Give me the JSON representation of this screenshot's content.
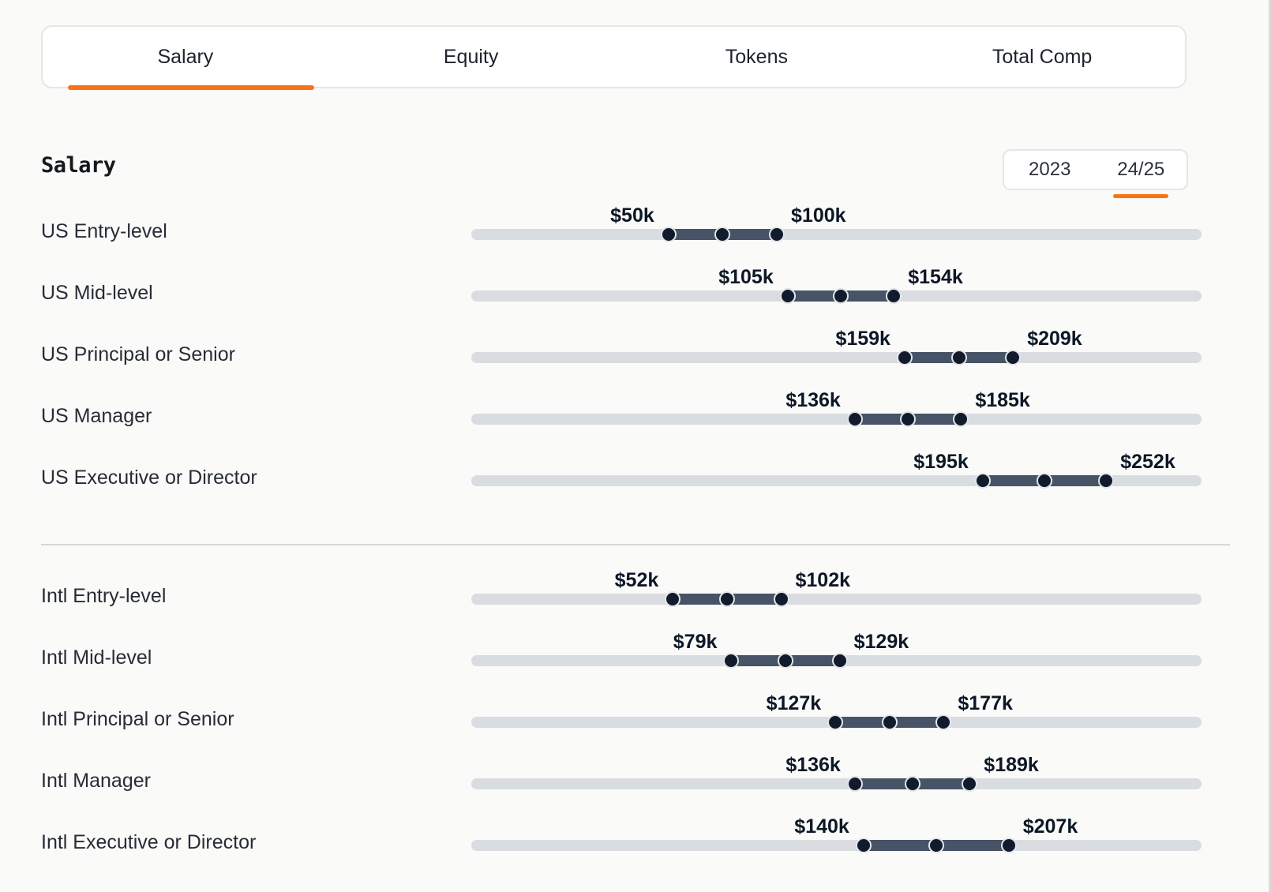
{
  "tabs": [
    {
      "label": "Salary",
      "active": true
    },
    {
      "label": "Equity",
      "active": false
    },
    {
      "label": "Tokens",
      "active": false
    },
    {
      "label": "Total Comp",
      "active": false
    }
  ],
  "section_heading": "Salary",
  "year_toggle": {
    "options": [
      {
        "label": "2023",
        "active": false
      },
      {
        "label": "24/25",
        "active": true
      }
    ]
  },
  "colors": {
    "accent_orange": "#f97316",
    "range_bar": "#475366",
    "slider_handle": "#111b2b",
    "track": "#d9dce1"
  },
  "slider_scale_k": {
    "min": -41,
    "max": 296
  },
  "chart_data": {
    "type": "table",
    "title": "Salary",
    "unit": "USD thousands",
    "sections": [
      {
        "name": "US",
        "rows": [
          {
            "label": "US Entry-level",
            "min_k": 50,
            "max_k": 100,
            "min_label": "$50k",
            "max_label": "$100k"
          },
          {
            "label": "US Mid-level",
            "min_k": 105,
            "max_k": 154,
            "min_label": "$105k",
            "max_label": "$154k"
          },
          {
            "label": "US Principal or Senior",
            "min_k": 159,
            "max_k": 209,
            "min_label": "$159k",
            "max_label": "$209k"
          },
          {
            "label": "US Manager",
            "min_k": 136,
            "max_k": 185,
            "min_label": "$136k",
            "max_label": "$185k"
          },
          {
            "label": "US Executive or Director",
            "min_k": 195,
            "max_k": 252,
            "min_label": "$195k",
            "max_label": "$252k"
          }
        ]
      },
      {
        "name": "Intl",
        "rows": [
          {
            "label": "Intl Entry-level",
            "min_k": 52,
            "max_k": 102,
            "min_label": "$52k",
            "max_label": "$102k"
          },
          {
            "label": "Intl Mid-level",
            "min_k": 79,
            "max_k": 129,
            "min_label": "$79k",
            "max_label": "$129k"
          },
          {
            "label": "Intl Principal or Senior",
            "min_k": 127,
            "max_k": 177,
            "min_label": "$127k",
            "max_label": "$177k"
          },
          {
            "label": "Intl Manager",
            "min_k": 136,
            "max_k": 189,
            "min_label": "$136k",
            "max_label": "$189k"
          },
          {
            "label": "Intl Executive or Director",
            "min_k": 140,
            "max_k": 207,
            "min_label": "$140k",
            "max_label": "$207k"
          }
        ]
      }
    ]
  }
}
